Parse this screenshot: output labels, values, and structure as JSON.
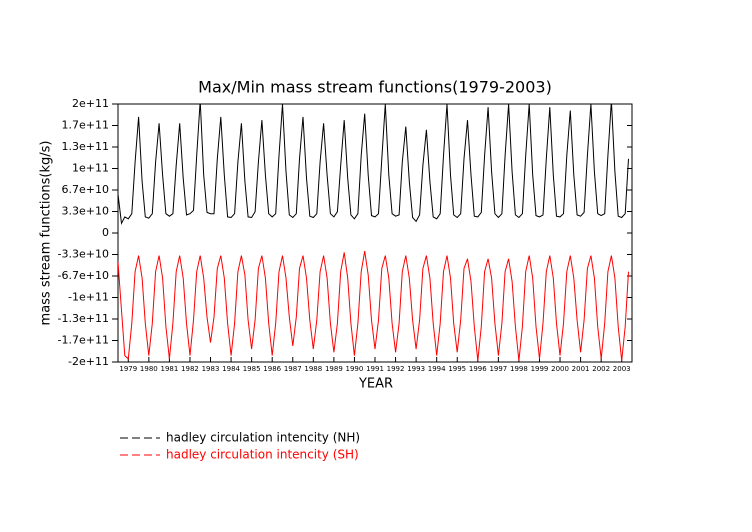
{
  "chart_data": {
    "type": "line",
    "title": "Max/Min mass stream functions(1979-2003)",
    "x_label": "YEAR",
    "y_label": "mass stream functions(kg/s)",
    "xlim": [
      1979,
      2004
    ],
    "xticks": [
      {
        "value": 1979.5,
        "label": "1979"
      },
      {
        "value": 1980.5,
        "label": "1980"
      },
      {
        "value": 1981.5,
        "label": "1981"
      },
      {
        "value": 1982.5,
        "label": "1982"
      },
      {
        "value": 1983.5,
        "label": "1983"
      },
      {
        "value": 1984.5,
        "label": "1984"
      },
      {
        "value": 1985.5,
        "label": "1985"
      },
      {
        "value": 1986.5,
        "label": "1986"
      },
      {
        "value": 1987.5,
        "label": "1987"
      },
      {
        "value": 1988.5,
        "label": "1988"
      },
      {
        "value": 1989.5,
        "label": "1989"
      },
      {
        "value": 1990.5,
        "label": "1990"
      },
      {
        "value": 1991.5,
        "label": "1991"
      },
      {
        "value": 1992.5,
        "label": "1992"
      },
      {
        "value": 1993.5,
        "label": "1993"
      },
      {
        "value": 1994.5,
        "label": "1994"
      },
      {
        "value": 1995.5,
        "label": "1995"
      },
      {
        "value": 1996.5,
        "label": "1996"
      },
      {
        "value": 1997.5,
        "label": "1997"
      },
      {
        "value": 1998.5,
        "label": "1998"
      },
      {
        "value": 1999.5,
        "label": "1999"
      },
      {
        "value": 2000.5,
        "label": "2000"
      },
      {
        "value": 2001.5,
        "label": "2001"
      },
      {
        "value": 2002.5,
        "label": "2002"
      },
      {
        "value": 2003.5,
        "label": "2003"
      }
    ],
    "ylim": [
      -200000000000.0,
      200000000000.0
    ],
    "yticks": [
      {
        "value": 200000000000.0,
        "label": "2e+11"
      },
      {
        "value": 166670000000.0,
        "label": "1.7e+11"
      },
      {
        "value": 133330000000.0,
        "label": "1.3e+11"
      },
      {
        "value": 100000000000.0,
        "label": "1e+11"
      },
      {
        "value": 66670000000.0,
        "label": "6.7e+10"
      },
      {
        "value": 33330000000.0,
        "label": "3.3e+10"
      },
      0,
      {
        "value": -33330000000.0,
        "label": "-3.3e+10"
      },
      {
        "value": -66670000000.0,
        "label": "-6.7e+10"
      },
      {
        "value": -100000000000.0,
        "label": "-1e+11"
      },
      {
        "value": -133330000000.0,
        "label": "-1.3e+11"
      },
      {
        "value": -166670000000.0,
        "label": "-1.7e+11"
      },
      {
        "value": -200000000000.0,
        "label": "-2e+11"
      }
    ],
    "x": [
      1979,
      1979.17,
      1979.33,
      1979.5,
      1979.67,
      1979.83,
      1980,
      1980.17,
      1980.33,
      1980.5,
      1980.67,
      1980.83,
      1981,
      1981.17,
      1981.33,
      1981.5,
      1981.67,
      1981.83,
      1982,
      1982.17,
      1982.33,
      1982.5,
      1982.67,
      1982.83,
      1983,
      1983.17,
      1983.33,
      1983.5,
      1983.67,
      1983.83,
      1984,
      1984.17,
      1984.33,
      1984.5,
      1984.67,
      1984.83,
      1985,
      1985.17,
      1985.33,
      1985.5,
      1985.67,
      1985.83,
      1986,
      1986.17,
      1986.33,
      1986.5,
      1986.67,
      1986.83,
      1987,
      1987.17,
      1987.33,
      1987.5,
      1987.67,
      1987.83,
      1988,
      1988.17,
      1988.33,
      1988.5,
      1988.67,
      1988.83,
      1989,
      1989.17,
      1989.33,
      1989.5,
      1989.67,
      1989.83,
      1990,
      1990.17,
      1990.33,
      1990.5,
      1990.67,
      1990.83,
      1991,
      1991.17,
      1991.33,
      1991.5,
      1991.67,
      1991.83,
      1992,
      1992.17,
      1992.33,
      1992.5,
      1992.67,
      1992.83,
      1993,
      1993.17,
      1993.33,
      1993.5,
      1993.67,
      1993.83,
      1994,
      1994.17,
      1994.33,
      1994.5,
      1994.67,
      1994.83,
      1995,
      1995.17,
      1995.33,
      1995.5,
      1995.67,
      1995.83,
      1996,
      1996.17,
      1996.33,
      1996.5,
      1996.67,
      1996.83,
      1997,
      1997.17,
      1997.33,
      1997.5,
      1997.67,
      1997.83,
      1998,
      1998.17,
      1998.33,
      1998.5,
      1998.67,
      1998.83,
      1999,
      1999.17,
      1999.33,
      1999.5,
      1999.67,
      1999.83,
      2000,
      2000.17,
      2000.33,
      2000.5,
      2000.67,
      2000.83,
      2001,
      2001.17,
      2001.33,
      2001.5,
      2001.67,
      2001.83,
      2002,
      2002.17,
      2002.33,
      2002.5,
      2002.67,
      2002.83,
      2003,
      2003.17,
      2003.33,
      2003.5,
      2003.67,
      2003.83
    ],
    "series": [
      {
        "name": "hadley circulation intencity (NH)",
        "color": "#000000",
        "values": [
          60000000000.0,
          15000000000.0,
          25000000000.0,
          22000000000.0,
          30000000000.0,
          110000000000.0,
          180000000000.0,
          80000000000.0,
          25000000000.0,
          23000000000.0,
          30000000000.0,
          110000000000.0,
          170000000000.0,
          90000000000.0,
          30000000000.0,
          26000000000.0,
          30000000000.0,
          105000000000.0,
          170000000000.0,
          85000000000.0,
          28000000000.0,
          30000000000.0,
          35000000000.0,
          120000000000.0,
          205000000000.0,
          90000000000.0,
          32000000000.0,
          30000000000.0,
          30000000000.0,
          115000000000.0,
          180000000000.0,
          90000000000.0,
          25000000000.0,
          24000000000.0,
          30000000000.0,
          110000000000.0,
          170000000000.0,
          80000000000.0,
          25000000000.0,
          24000000000.0,
          33000000000.0,
          110000000000.0,
          175000000000.0,
          90000000000.0,
          30000000000.0,
          25000000000.0,
          30000000000.0,
          120000000000.0,
          200000000000.0,
          95000000000.0,
          28000000000.0,
          24000000000.0,
          30000000000.0,
          115000000000.0,
          180000000000.0,
          85000000000.0,
          26000000000.0,
          24000000000.0,
          30000000000.0,
          110000000000.0,
          170000000000.0,
          90000000000.0,
          30000000000.0,
          25000000000.0,
          33000000000.0,
          105000000000.0,
          175000000000.0,
          85000000000.0,
          28000000000.0,
          22000000000.0,
          30000000000.0,
          120000000000.0,
          185000000000.0,
          90000000000.0,
          27000000000.0,
          25000000000.0,
          30000000000.0,
          115000000000.0,
          200000000000.0,
          90000000000.0,
          30000000000.0,
          26000000000.0,
          28000000000.0,
          110000000000.0,
          165000000000.0,
          80000000000.0,
          24000000000.0,
          18000000000.0,
          28000000000.0,
          105000000000.0,
          160000000000.0,
          80000000000.0,
          25000000000.0,
          22000000000.0,
          30000000000.0,
          120000000000.0,
          200000000000.0,
          90000000000.0,
          28000000000.0,
          24000000000.0,
          30000000000.0,
          115000000000.0,
          175000000000.0,
          90000000000.0,
          26000000000.0,
          25000000000.0,
          32000000000.0,
          120000000000.0,
          195000000000.0,
          95000000000.0,
          30000000000.0,
          24000000000.0,
          30000000000.0,
          120000000000.0,
          200000000000.0,
          95000000000.0,
          28000000000.0,
          24000000000.0,
          30000000000.0,
          120000000000.0,
          200000000000.0,
          90000000000.0,
          27000000000.0,
          25000000000.0,
          28000000000.0,
          115000000000.0,
          195000000000.0,
          90000000000.0,
          26000000000.0,
          25000000000.0,
          30000000000.0,
          120000000000.0,
          190000000000.0,
          90000000000.0,
          28000000000.0,
          26000000000.0,
          32000000000.0,
          120000000000.0,
          200000000000.0,
          95000000000.0,
          30000000000.0,
          27000000000.0,
          30000000000.0,
          120000000000.0,
          205000000000.0,
          95000000000.0,
          26000000000.0,
          24000000000.0,
          30000000000.0,
          115000000000.0
        ]
      },
      {
        "name": "hadley circulation intencity (SH)",
        "color": "#ff0000",
        "values": [
          -45000000000.0,
          -120000000000.0,
          -190000000000.0,
          -195000000000.0,
          -140000000000.0,
          -60000000000.0,
          -35000000000.0,
          -70000000000.0,
          -140000000000.0,
          -190000000000.0,
          -140000000000.0,
          -60000000000.0,
          -35000000000.0,
          -70000000000.0,
          -145000000000.0,
          -195000000000.0,
          -140000000000.0,
          -60000000000.0,
          -35000000000.0,
          -70000000000.0,
          -140000000000.0,
          -190000000000.0,
          -135000000000.0,
          -60000000000.0,
          -35000000000.0,
          -70000000000.0,
          -130000000000.0,
          -170000000000.0,
          -130000000000.0,
          -55000000000.0,
          -35000000000.0,
          -70000000000.0,
          -140000000000.0,
          -190000000000.0,
          -140000000000.0,
          -60000000000.0,
          -35000000000.0,
          -65000000000.0,
          -135000000000.0,
          -180000000000.0,
          -135000000000.0,
          -55000000000.0,
          -35000000000.0,
          -70000000000.0,
          -140000000000.0,
          -190000000000.0,
          -140000000000.0,
          -60000000000.0,
          -35000000000.0,
          -70000000000.0,
          -130000000000.0,
          -175000000000.0,
          -130000000000.0,
          -55000000000.0,
          -35000000000.0,
          -70000000000.0,
          -135000000000.0,
          -180000000000.0,
          -135000000000.0,
          -60000000000.0,
          -35000000000.0,
          -70000000000.0,
          -140000000000.0,
          -185000000000.0,
          -140000000000.0,
          -60000000000.0,
          -30000000000.0,
          -70000000000.0,
          -140000000000.0,
          -190000000000.0,
          -140000000000.0,
          -60000000000.0,
          -28000000000.0,
          -65000000000.0,
          -135000000000.0,
          -180000000000.0,
          -135000000000.0,
          -55000000000.0,
          -35000000000.0,
          -70000000000.0,
          -140000000000.0,
          -185000000000.0,
          -140000000000.0,
          -60000000000.0,
          -35000000000.0,
          -70000000000.0,
          -135000000000.0,
          -180000000000.0,
          -135000000000.0,
          -55000000000.0,
          -35000000000.0,
          -70000000000.0,
          -140000000000.0,
          -190000000000.0,
          -140000000000.0,
          -60000000000.0,
          -35000000000.0,
          -70000000000.0,
          -140000000000.0,
          -185000000000.0,
          -135000000000.0,
          -55000000000.0,
          -40000000000.0,
          -75000000000.0,
          -145000000000.0,
          -198000000000.0,
          -145000000000.0,
          -60000000000.0,
          -40000000000.0,
          -70000000000.0,
          -140000000000.0,
          -190000000000.0,
          -140000000000.0,
          -60000000000.0,
          -40000000000.0,
          -75000000000.0,
          -145000000000.0,
          -198000000000.0,
          -145000000000.0,
          -60000000000.0,
          -35000000000.0,
          -70000000000.0,
          -145000000000.0,
          -195000000000.0,
          -140000000000.0,
          -60000000000.0,
          -35000000000.0,
          -70000000000.0,
          -140000000000.0,
          -190000000000.0,
          -140000000000.0,
          -60000000000.0,
          -35000000000.0,
          -70000000000.0,
          -135000000000.0,
          -185000000000.0,
          -135000000000.0,
          -55000000000.0,
          -35000000000.0,
          -70000000000.0,
          -145000000000.0,
          -195000000000.0,
          -140000000000.0,
          -60000000000.0,
          -35000000000.0,
          -70000000000.0,
          -145000000000.0,
          -198000000000.0,
          -145000000000.0,
          -60000000000.0
        ]
      }
    ]
  }
}
